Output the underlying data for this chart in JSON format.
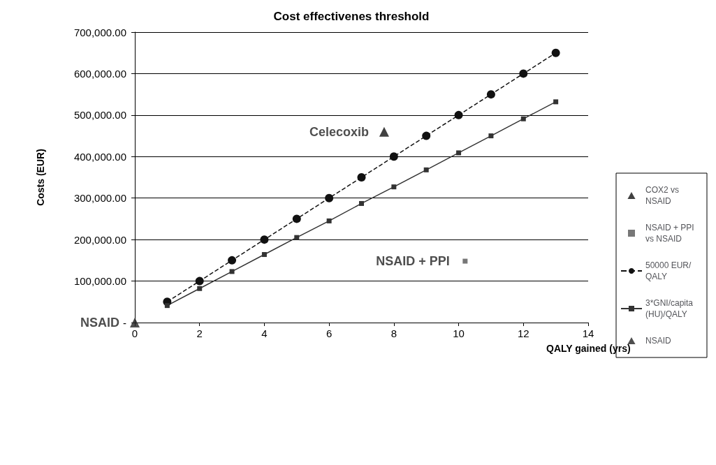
{
  "chart_data": {
    "type": "line",
    "title": "Cost effectivenes threshold",
    "xlabel": "QALY gained (yrs)",
    "ylabel": "Costs (EUR)",
    "xlim": [
      0,
      14
    ],
    "xticks": [
      0,
      2,
      4,
      6,
      8,
      10,
      12,
      14
    ],
    "ylim": [
      0,
      700000
    ],
    "yticks": [
      {
        "value": 0,
        "label": "-"
      },
      {
        "value": 100000,
        "label": "100,000.00"
      },
      {
        "value": 200000,
        "label": "200,000.00"
      },
      {
        "value": 300000,
        "label": "300,000.00"
      },
      {
        "value": 400000,
        "label": "400,000.00"
      },
      {
        "value": 500000,
        "label": "500,000.00"
      },
      {
        "value": 600000,
        "label": "600,000.00"
      },
      {
        "value": 700000,
        "label": "700,000.00"
      }
    ],
    "grid": "y",
    "legend": "right",
    "series": [
      {
        "name": "COX2 vs NSAID",
        "type": "scatter",
        "marker": "triangle",
        "color": "#111111",
        "x": [
          7.7
        ],
        "values": [
          460000
        ]
      },
      {
        "name": "NSAID + PPI vs NSAID",
        "type": "scatter",
        "marker": "square",
        "color": "#555555",
        "x": [
          10.2
        ],
        "values": [
          148000
        ]
      },
      {
        "name": "50000 EUR/QALY",
        "marker": "circle",
        "line_style": "dashed",
        "color": "#111111",
        "x": [
          1,
          2,
          3,
          4,
          5,
          6,
          7,
          8,
          9,
          10,
          11,
          12,
          13
        ],
        "values": [
          50000,
          100000,
          150000,
          200000,
          250000,
          300000,
          350000,
          400000,
          450000,
          500000,
          550000,
          600000,
          650000
        ]
      },
      {
        "name": "3*GNI/capita (HU)/QALY",
        "marker": "square",
        "line_style": "solid",
        "color": "#333333",
        "x": [
          1,
          2,
          3,
          4,
          5,
          6,
          7,
          8,
          9,
          10,
          11,
          12,
          13
        ],
        "values": [
          41000,
          82000,
          123000,
          164000,
          205000,
          245000,
          287000,
          327000,
          368000,
          409000,
          450000,
          491000,
          532000
        ]
      },
      {
        "name": "NSAID",
        "type": "scatter",
        "marker": "triangle",
        "color": "#222222",
        "x": [
          0
        ],
        "values": [
          0
        ]
      }
    ],
    "annotations": [
      {
        "text": "Celecoxib",
        "x": 7.7,
        "y": 460000
      },
      {
        "text": "NSAID + PPI",
        "x": 10.2,
        "y": 148000
      },
      {
        "text": "NSAID",
        "x": 0,
        "y": 0
      }
    ]
  }
}
